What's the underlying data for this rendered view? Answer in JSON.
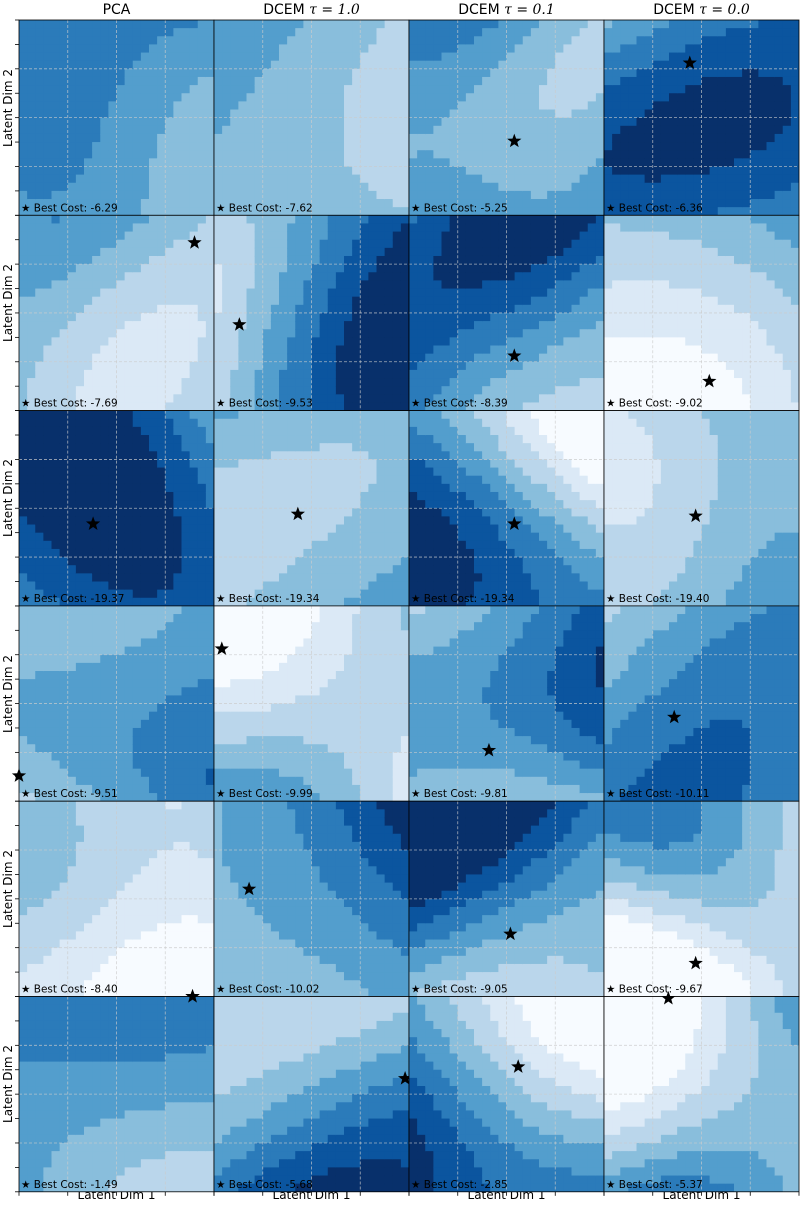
{
  "colors": {
    "levels": [
      "#f7fbff",
      "#dbe9f6",
      "#bad6eb",
      "#89bedc",
      "#539ecd",
      "#2b7bba",
      "#0b559f",
      "#08306b"
    ],
    "grid": "#cccccc",
    "star": "#000000"
  },
  "columns": [
    {
      "title": "PCA",
      "tau": ""
    },
    {
      "title": "DCEM ",
      "tau": "τ = 1.0"
    },
    {
      "title": "DCEM ",
      "tau": "τ = 0.1"
    },
    {
      "title": "DCEM ",
      "tau": "τ = 0.0"
    }
  ],
  "axes": {
    "ylabel": "Latent Dim 2",
    "xlabel": "Latent Dim 1",
    "grid": true,
    "best_marker_label": "★ Best Cost: "
  },
  "chart_data": {
    "type": "heatmap",
    "layout": "grid 6 rows x 4 columns",
    "colormap": "Blues (filled contours, 8 levels)",
    "domain": [
      0,
      1
    ],
    "panels": [
      [
        {
          "best_cost": "-6.29",
          "star": null
        },
        {
          "best_cost": "-7.62",
          "star": null
        },
        {
          "best_cost": "-5.25",
          "star": [
            0.54,
            0.38
          ]
        },
        {
          "best_cost": "-6.36",
          "star": [
            0.44,
            0.78
          ]
        }
      ],
      [
        {
          "best_cost": "-7.69",
          "star": [
            0.9,
            0.86
          ]
        },
        {
          "best_cost": "-9.53",
          "star": [
            0.13,
            0.44
          ]
        },
        {
          "best_cost": "-8.39",
          "star": [
            0.54,
            0.28
          ]
        },
        {
          "best_cost": "-9.02",
          "star": [
            0.54,
            0.15
          ]
        }
      ],
      [
        {
          "best_cost": "-19.37",
          "star": [
            0.38,
            0.42
          ]
        },
        {
          "best_cost": "-19.34",
          "star": [
            0.43,
            0.47
          ]
        },
        {
          "best_cost": "-19.34",
          "star": [
            0.54,
            0.42
          ]
        },
        {
          "best_cost": "-19.40",
          "star": [
            0.47,
            0.46
          ]
        }
      ],
      [
        {
          "best_cost": "-9.51",
          "star": [
            0.0,
            0.13
          ]
        },
        {
          "best_cost": "-9.99",
          "star": [
            0.04,
            0.78
          ]
        },
        {
          "best_cost": "-9.81",
          "star": [
            0.41,
            0.26
          ]
        },
        {
          "best_cost": "-10.11",
          "star": [
            0.36,
            0.43
          ]
        }
      ],
      [
        {
          "best_cost": "-8.40",
          "star": [
            0.89,
            0.0
          ]
        },
        {
          "best_cost": "-10.02",
          "star": [
            0.18,
            0.55
          ]
        },
        {
          "best_cost": "-9.05",
          "star": [
            0.52,
            0.32
          ]
        },
        {
          "best_cost": "-9.67",
          "star": [
            0.47,
            0.17
          ]
        }
      ],
      [
        {
          "best_cost": "-1.49",
          "star": [
            0.89,
            1.0
          ]
        },
        {
          "best_cost": "-5.68",
          "star": [
            0.98,
            0.58
          ]
        },
        {
          "best_cost": "-2.85",
          "star": [
            0.56,
            0.64
          ]
        },
        {
          "best_cost": "-5.37",
          "star": [
            0.33,
            0.99
          ]
        }
      ]
    ]
  }
}
